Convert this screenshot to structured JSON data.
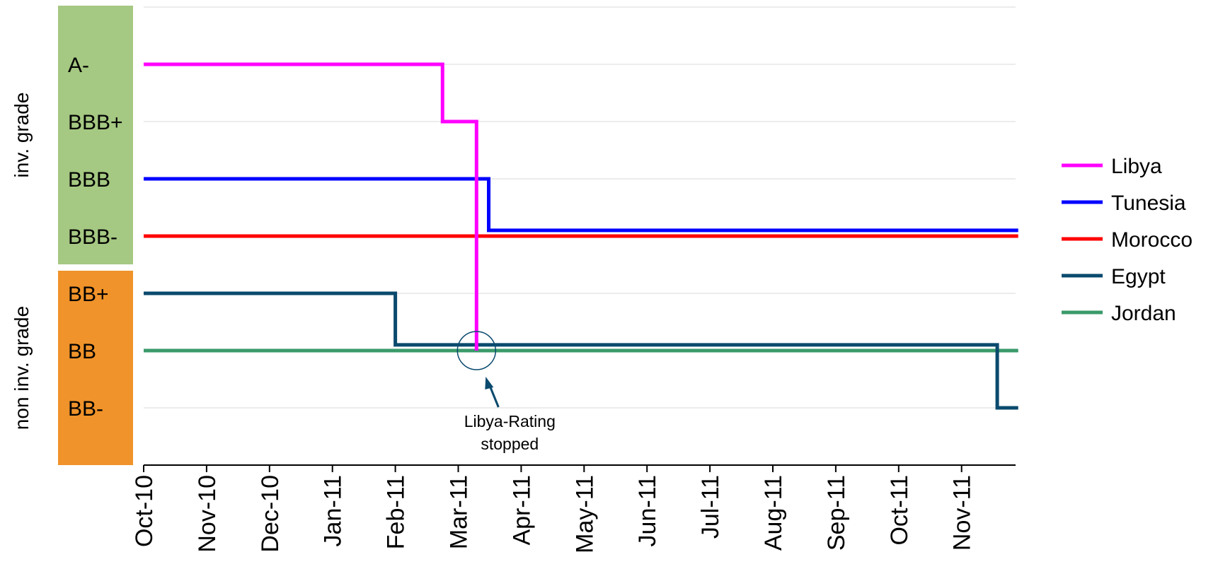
{
  "chart_data": {
    "type": "line",
    "x_categories": [
      "Oct-10",
      "Nov-10",
      "Dec-10",
      "Jan-11",
      "Feb-11",
      "Mar-11",
      "Apr-11",
      "May-11",
      "Jun-11",
      "Jul-11",
      "Aug-11",
      "Sep-11",
      "Oct-11",
      "Nov-11"
    ],
    "x_range": [
      "2010-10-01",
      "2011-12-01"
    ],
    "rating_scale": [
      "BB-",
      "BB",
      "BB+",
      "BBB-",
      "BBB",
      "BBB+",
      "A-"
    ],
    "bands": [
      {
        "label": "inv. grade",
        "ratings": [
          "BBB-",
          "BBB",
          "BBB+",
          "A-"
        ],
        "color": "#a5c882"
      },
      {
        "label": "non inv. grade",
        "ratings": [
          "BB-",
          "BB",
          "BB+"
        ],
        "color": "#f0932a"
      }
    ],
    "series": [
      {
        "name": "Libya",
        "color": "#ff00ff",
        "steps": [
          {
            "date": "2010-10-01",
            "rating": "A-"
          },
          {
            "date": "2011-02-22",
            "rating": "BBB+"
          },
          {
            "date": "2011-03-10",
            "rating": "BB"
          }
        ],
        "end": "2011-03-10"
      },
      {
        "name": "Tunesia",
        "color": "#0000ff",
        "steps": [
          {
            "date": "2010-10-01",
            "rating": "BBB"
          },
          {
            "date": "2011-03-16",
            "rating": "BBB-",
            "offset": 0.1
          }
        ],
        "end": "2011-11-28"
      },
      {
        "name": "Morocco",
        "color": "#ff0000",
        "steps": [
          {
            "date": "2010-10-01",
            "rating": "BBB-"
          }
        ],
        "end": "2011-11-28"
      },
      {
        "name": "Egypt",
        "color": "#0a4a6e",
        "steps": [
          {
            "date": "2010-10-01",
            "rating": "BB+"
          },
          {
            "date": "2011-02-01",
            "rating": "BB",
            "offset": 0.1
          },
          {
            "date": "2011-11-18",
            "rating": "BB-"
          }
        ],
        "end": "2011-11-28"
      },
      {
        "name": "Jordan",
        "color": "#3a9a6a",
        "steps": [
          {
            "date": "2010-10-01",
            "rating": "BB"
          }
        ],
        "end": "2011-11-28"
      }
    ],
    "annotations": [
      {
        "text_lines": [
          "Libya-Rating",
          "stopped"
        ],
        "date": "2011-03-10",
        "rating": "BB"
      }
    ],
    "grid": true,
    "legend_position": "right"
  }
}
